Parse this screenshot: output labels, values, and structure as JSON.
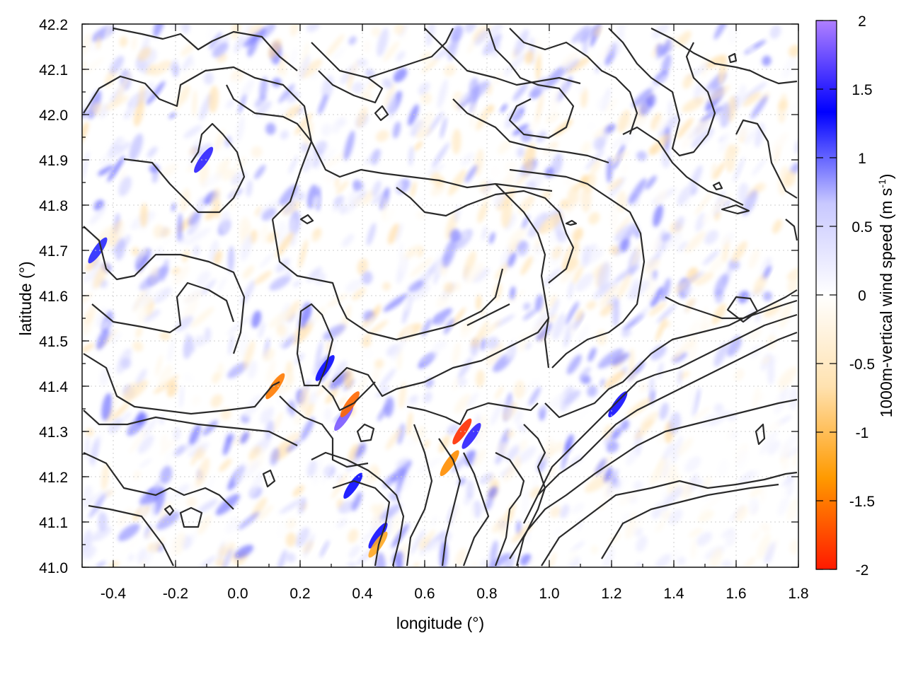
{
  "chart_data": {
    "type": "heatmap",
    "title": "",
    "xlabel": "longitude (°)",
    "ylabel": "latitude (°)",
    "xlim": [
      -0.5,
      1.8
    ],
    "ylim": [
      41.0,
      42.2
    ],
    "x_ticks": [
      "-0.4",
      "-0.2",
      "0.0",
      "0.2",
      "0.4",
      "0.6",
      "0.8",
      "1.0",
      "1.2",
      "1.4",
      "1.6",
      "1.8"
    ],
    "y_ticks": [
      "41.0",
      "41.1",
      "41.2",
      "41.3",
      "41.4",
      "41.5",
      "41.6",
      "41.7",
      "41.8",
      "41.9",
      "42.0",
      "42.1",
      "42.2"
    ],
    "grid": true,
    "colorbar": {
      "label": "1000m-vertical wind speed (m s",
      "label_sup": "-1",
      "label_end": ")",
      "range": [
        -2,
        2
      ],
      "ticks": [
        "2",
        "1.5",
        "1",
        "0.5",
        "0",
        "-0.5",
        "-1",
        "-1.5",
        "-2"
      ],
      "stops": [
        "#ff1a00",
        "#ff9a00",
        "#ffe2b0",
        "#ffffff",
        "#c8c8ff",
        "#0000ff",
        "#b080ff"
      ]
    },
    "overlay": "terrain contour lines (black)",
    "notable_features": [
      {
        "lon": 0.34,
        "lat": 41.33,
        "w": 1.8
      },
      {
        "lon": 0.36,
        "lat": 41.36,
        "w": -1.6
      },
      {
        "lon": 0.72,
        "lat": 41.3,
        "w": -1.9
      },
      {
        "lon": 0.75,
        "lat": 41.29,
        "w": 1.5
      },
      {
        "lon": 0.45,
        "lat": 41.07,
        "w": 1.4
      },
      {
        "lon": 0.45,
        "lat": 41.05,
        "w": -1.2
      },
      {
        "lon": 0.37,
        "lat": 41.18,
        "w": 1.3
      },
      {
        "lon": -0.11,
        "lat": 41.9,
        "w": 1.5
      },
      {
        "lon": -0.45,
        "lat": 41.7,
        "w": 1.2
      },
      {
        "lon": 0.12,
        "lat": 41.4,
        "w": -1.5
      },
      {
        "lon": 1.22,
        "lat": 41.36,
        "w": 1.4
      },
      {
        "lon": 0.28,
        "lat": 41.44,
        "w": 1.3
      },
      {
        "lon": 0.68,
        "lat": 41.23,
        "w": -1.4
      }
    ]
  }
}
